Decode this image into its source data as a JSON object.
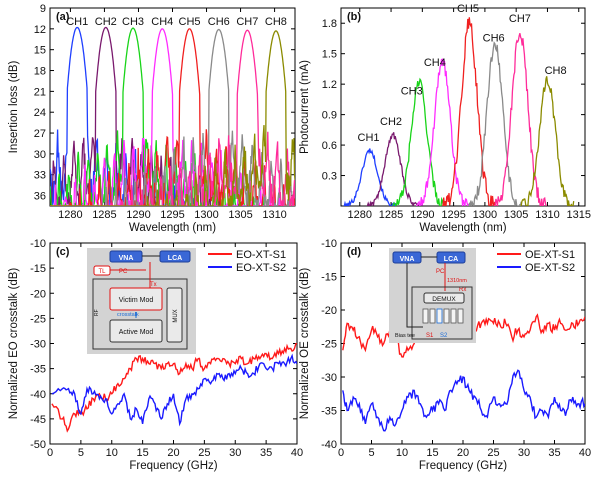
{
  "chart_data": [
    {
      "panel": "(a)",
      "type": "line",
      "xlabel": "Wavelength (nm)",
      "ylabel": "Insertion loss (dB)",
      "xlim": [
        1277,
        1313
      ],
      "ylim": [
        9,
        37.5
      ],
      "y_reversed": true,
      "xticks": [
        1280,
        1285,
        1290,
        1295,
        1300,
        1305,
        1310
      ],
      "yticks": [
        9,
        12,
        15,
        18,
        21,
        24,
        27,
        30,
        33,
        36
      ],
      "series": [
        {
          "name": "CH1",
          "color": "#1f3fff",
          "center": 1281.0,
          "peak": 11.8
        },
        {
          "name": "CH2",
          "color": "#7a1a6e",
          "center": 1285.2,
          "peak": 11.8
        },
        {
          "name": "CH3",
          "color": "#19d419",
          "center": 1289.2,
          "peak": 11.9
        },
        {
          "name": "CH4",
          "color": "#ff2cff",
          "center": 1293.5,
          "peak": 12.0
        },
        {
          "name": "CH5",
          "color": "#f02020",
          "center": 1297.5,
          "peak": 12.0
        },
        {
          "name": "CH6",
          "color": "#8a8a8a",
          "center": 1301.8,
          "peak": 12.1
        },
        {
          "name": "CH7",
          "color": "#ff2c9a",
          "center": 1306.0,
          "peak": 12.2
        },
        {
          "name": "CH8",
          "color": "#8b8b00",
          "center": 1310.2,
          "peak": 12.3
        }
      ]
    },
    {
      "panel": "(b)",
      "type": "line",
      "xlabel": "Wavelength (nm)",
      "ylabel": "Photocurrent (mA)",
      "xlim": [
        1277,
        1316
      ],
      "ylim": [
        0,
        1.95
      ],
      "xticks": [
        1280,
        1285,
        1290,
        1295,
        1300,
        1305,
        1310,
        1315
      ],
      "yticks": [
        0.3,
        0.6,
        0.9,
        1.2,
        1.5,
        1.8
      ],
      "series": [
        {
          "name": "CH1",
          "color": "#1f3fff",
          "center": 1281.6,
          "peak": 0.55,
          "label_at": [
            1281.4,
            0.64
          ]
        },
        {
          "name": "CH2",
          "color": "#7a1a6e",
          "center": 1285.3,
          "peak": 0.7,
          "label_at": [
            1285.0,
            0.8
          ]
        },
        {
          "name": "CH3",
          "color": "#19d419",
          "center": 1289.5,
          "peak": 1.22,
          "label_at": [
            1288.3,
            1.1
          ]
        },
        {
          "name": "CH4",
          "color": "#ff2cff",
          "center": 1293.2,
          "peak": 1.43,
          "label_at": [
            1292.0,
            1.38
          ]
        },
        {
          "name": "CH5",
          "color": "#f02020",
          "center": 1297.5,
          "peak": 1.8,
          "label_at": [
            1297.3,
            1.91
          ]
        },
        {
          "name": "CH6",
          "color": "#8a8a8a",
          "center": 1301.6,
          "peak": 1.58,
          "label_at": [
            1301.4,
            1.62
          ]
        },
        {
          "name": "CH7",
          "color": "#ff2c9a",
          "center": 1305.6,
          "peak": 1.72,
          "label_at": [
            1305.6,
            1.81
          ]
        },
        {
          "name": "CH8",
          "color": "#8b8b00",
          "center": 1310.0,
          "peak": 1.25,
          "label_at": [
            1311.3,
            1.3
          ]
        }
      ]
    },
    {
      "panel": "(c)",
      "type": "line",
      "xlabel": "Frequency (GHz)",
      "ylabel": "Normalized EO crosstalk (dB)",
      "xlim": [
        0,
        40
      ],
      "ylim": [
        -50,
        -10
      ],
      "xticks": [
        0,
        5,
        10,
        15,
        20,
        25,
        30,
        35,
        40
      ],
      "yticks": [
        -50,
        -45,
        -40,
        -35,
        -30,
        -25,
        -20,
        -15,
        -10
      ],
      "legend": "top-right",
      "series": [
        {
          "name": "EO-XT-S1",
          "color": "#ff1a1a",
          "x": [
            0.3,
            2,
            3,
            4,
            5,
            6,
            7,
            8,
            9,
            10,
            11,
            12,
            13,
            14,
            15,
            16,
            17,
            18,
            19,
            20,
            21,
            22,
            23,
            24,
            25,
            26,
            27,
            28,
            29,
            30,
            31,
            32,
            33,
            34,
            35,
            36,
            37,
            38,
            39,
            40
          ],
          "y": [
            -42,
            -45,
            -47,
            -44,
            -44,
            -43,
            -41,
            -40,
            -41,
            -40,
            -38,
            -37,
            -35,
            -33,
            -33,
            -34,
            -34,
            -35,
            -34,
            -34,
            -36,
            -34,
            -35,
            -33,
            -35,
            -34,
            -33,
            -33,
            -34,
            -34,
            -33,
            -34,
            -33,
            -33,
            -32,
            -33,
            -32,
            -31,
            -31,
            -30
          ]
        },
        {
          "name": "EO-XT-S2",
          "color": "#1a1aff",
          "x": [
            0.3,
            2,
            3,
            4,
            5,
            6,
            7,
            8,
            9,
            10,
            11,
            12,
            13,
            14,
            15,
            16,
            17,
            18,
            19,
            20,
            21,
            22,
            23,
            24,
            25,
            26,
            27,
            28,
            29,
            30,
            31,
            32,
            33,
            34,
            35,
            36,
            37,
            38,
            39,
            40
          ],
          "y": [
            -40,
            -39,
            -39,
            -40,
            -44,
            -39,
            -40,
            -41,
            -41,
            -44,
            -42,
            -40,
            -45,
            -43,
            -46,
            -41,
            -42,
            -45,
            -42,
            -40,
            -46,
            -41,
            -40,
            -39,
            -37,
            -38,
            -36,
            -37,
            -36,
            -36,
            -35,
            -36,
            -36,
            -34,
            -35,
            -35,
            -34,
            -34,
            -33,
            -34
          ]
        }
      ],
      "inset": {
        "vna": "VNA",
        "lca": "LCA",
        "tl": "TL",
        "pc": "PC",
        "victim": "Victim Mod",
        "active": "Active Mod",
        "mux": "MUX",
        "tx": "Tx",
        "crosstalk": "crosstalk",
        "rf": "RF"
      }
    },
    {
      "panel": "(d)",
      "type": "line",
      "xlabel": "Frequency (GHz)",
      "ylabel": "Normalized OE crosstalk (dB)",
      "xlim": [
        0,
        40
      ],
      "ylim": [
        -40,
        -10
      ],
      "xticks": [
        0,
        5,
        10,
        15,
        20,
        25,
        30,
        35,
        40
      ],
      "yticks": [
        -40,
        -35,
        -30,
        -25,
        -20,
        -15,
        -10
      ],
      "legend": "top-right",
      "series": [
        {
          "name": "OE-XT-S1",
          "color": "#ff1a1a",
          "x": [
            0.3,
            1,
            2,
            3,
            4,
            5,
            6,
            7,
            8,
            9,
            10,
            11,
            12,
            13,
            14,
            15,
            16,
            17,
            18,
            19,
            20,
            21,
            22,
            23,
            24,
            25,
            26,
            27,
            28,
            29,
            30,
            31,
            32,
            33,
            34,
            35,
            36,
            37,
            38,
            39,
            40
          ],
          "y": [
            -26,
            -22,
            -23,
            -24,
            -26,
            -23,
            -24,
            -25,
            -23,
            -24,
            -27,
            -26,
            -25,
            -23,
            -22,
            -22,
            -23,
            -22,
            -23,
            -22,
            -21,
            -22,
            -23,
            -22,
            -22,
            -22,
            -22,
            -22,
            -24,
            -23,
            -24,
            -23,
            -21,
            -23,
            -22,
            -23,
            -22,
            -23,
            -22,
            -22,
            -21
          ]
        },
        {
          "name": "OE-XT-S2",
          "color": "#1a1aff",
          "x": [
            0.3,
            1,
            2,
            3,
            4,
            5,
            6,
            7,
            8,
            9,
            10,
            11,
            12,
            13,
            14,
            15,
            16,
            17,
            18,
            19,
            20,
            21,
            22,
            23,
            24,
            25,
            26,
            27,
            28,
            29,
            30,
            31,
            32,
            33,
            34,
            35,
            36,
            37,
            38,
            39,
            40
          ],
          "y": [
            -32,
            -35,
            -33,
            -34,
            -37,
            -34,
            -36,
            -38,
            -36,
            -37,
            -35,
            -33,
            -32,
            -34,
            -36,
            -35,
            -34,
            -35,
            -32,
            -31,
            -30,
            -32,
            -33,
            -35,
            -36,
            -33,
            -34,
            -34,
            -31,
            -29,
            -32,
            -33,
            -36,
            -35,
            -36,
            -33,
            -35,
            -35,
            -33,
            -34,
            -34
          ]
        }
      ],
      "inset": {
        "vna": "VNA",
        "lca": "LCA",
        "pc": "PC",
        "wavelength": "1310nm",
        "rx": "Rx",
        "demux": "DEMUX",
        "bias_tee": "Bias tee",
        "s1": "S1",
        "s2": "S2"
      }
    }
  ]
}
